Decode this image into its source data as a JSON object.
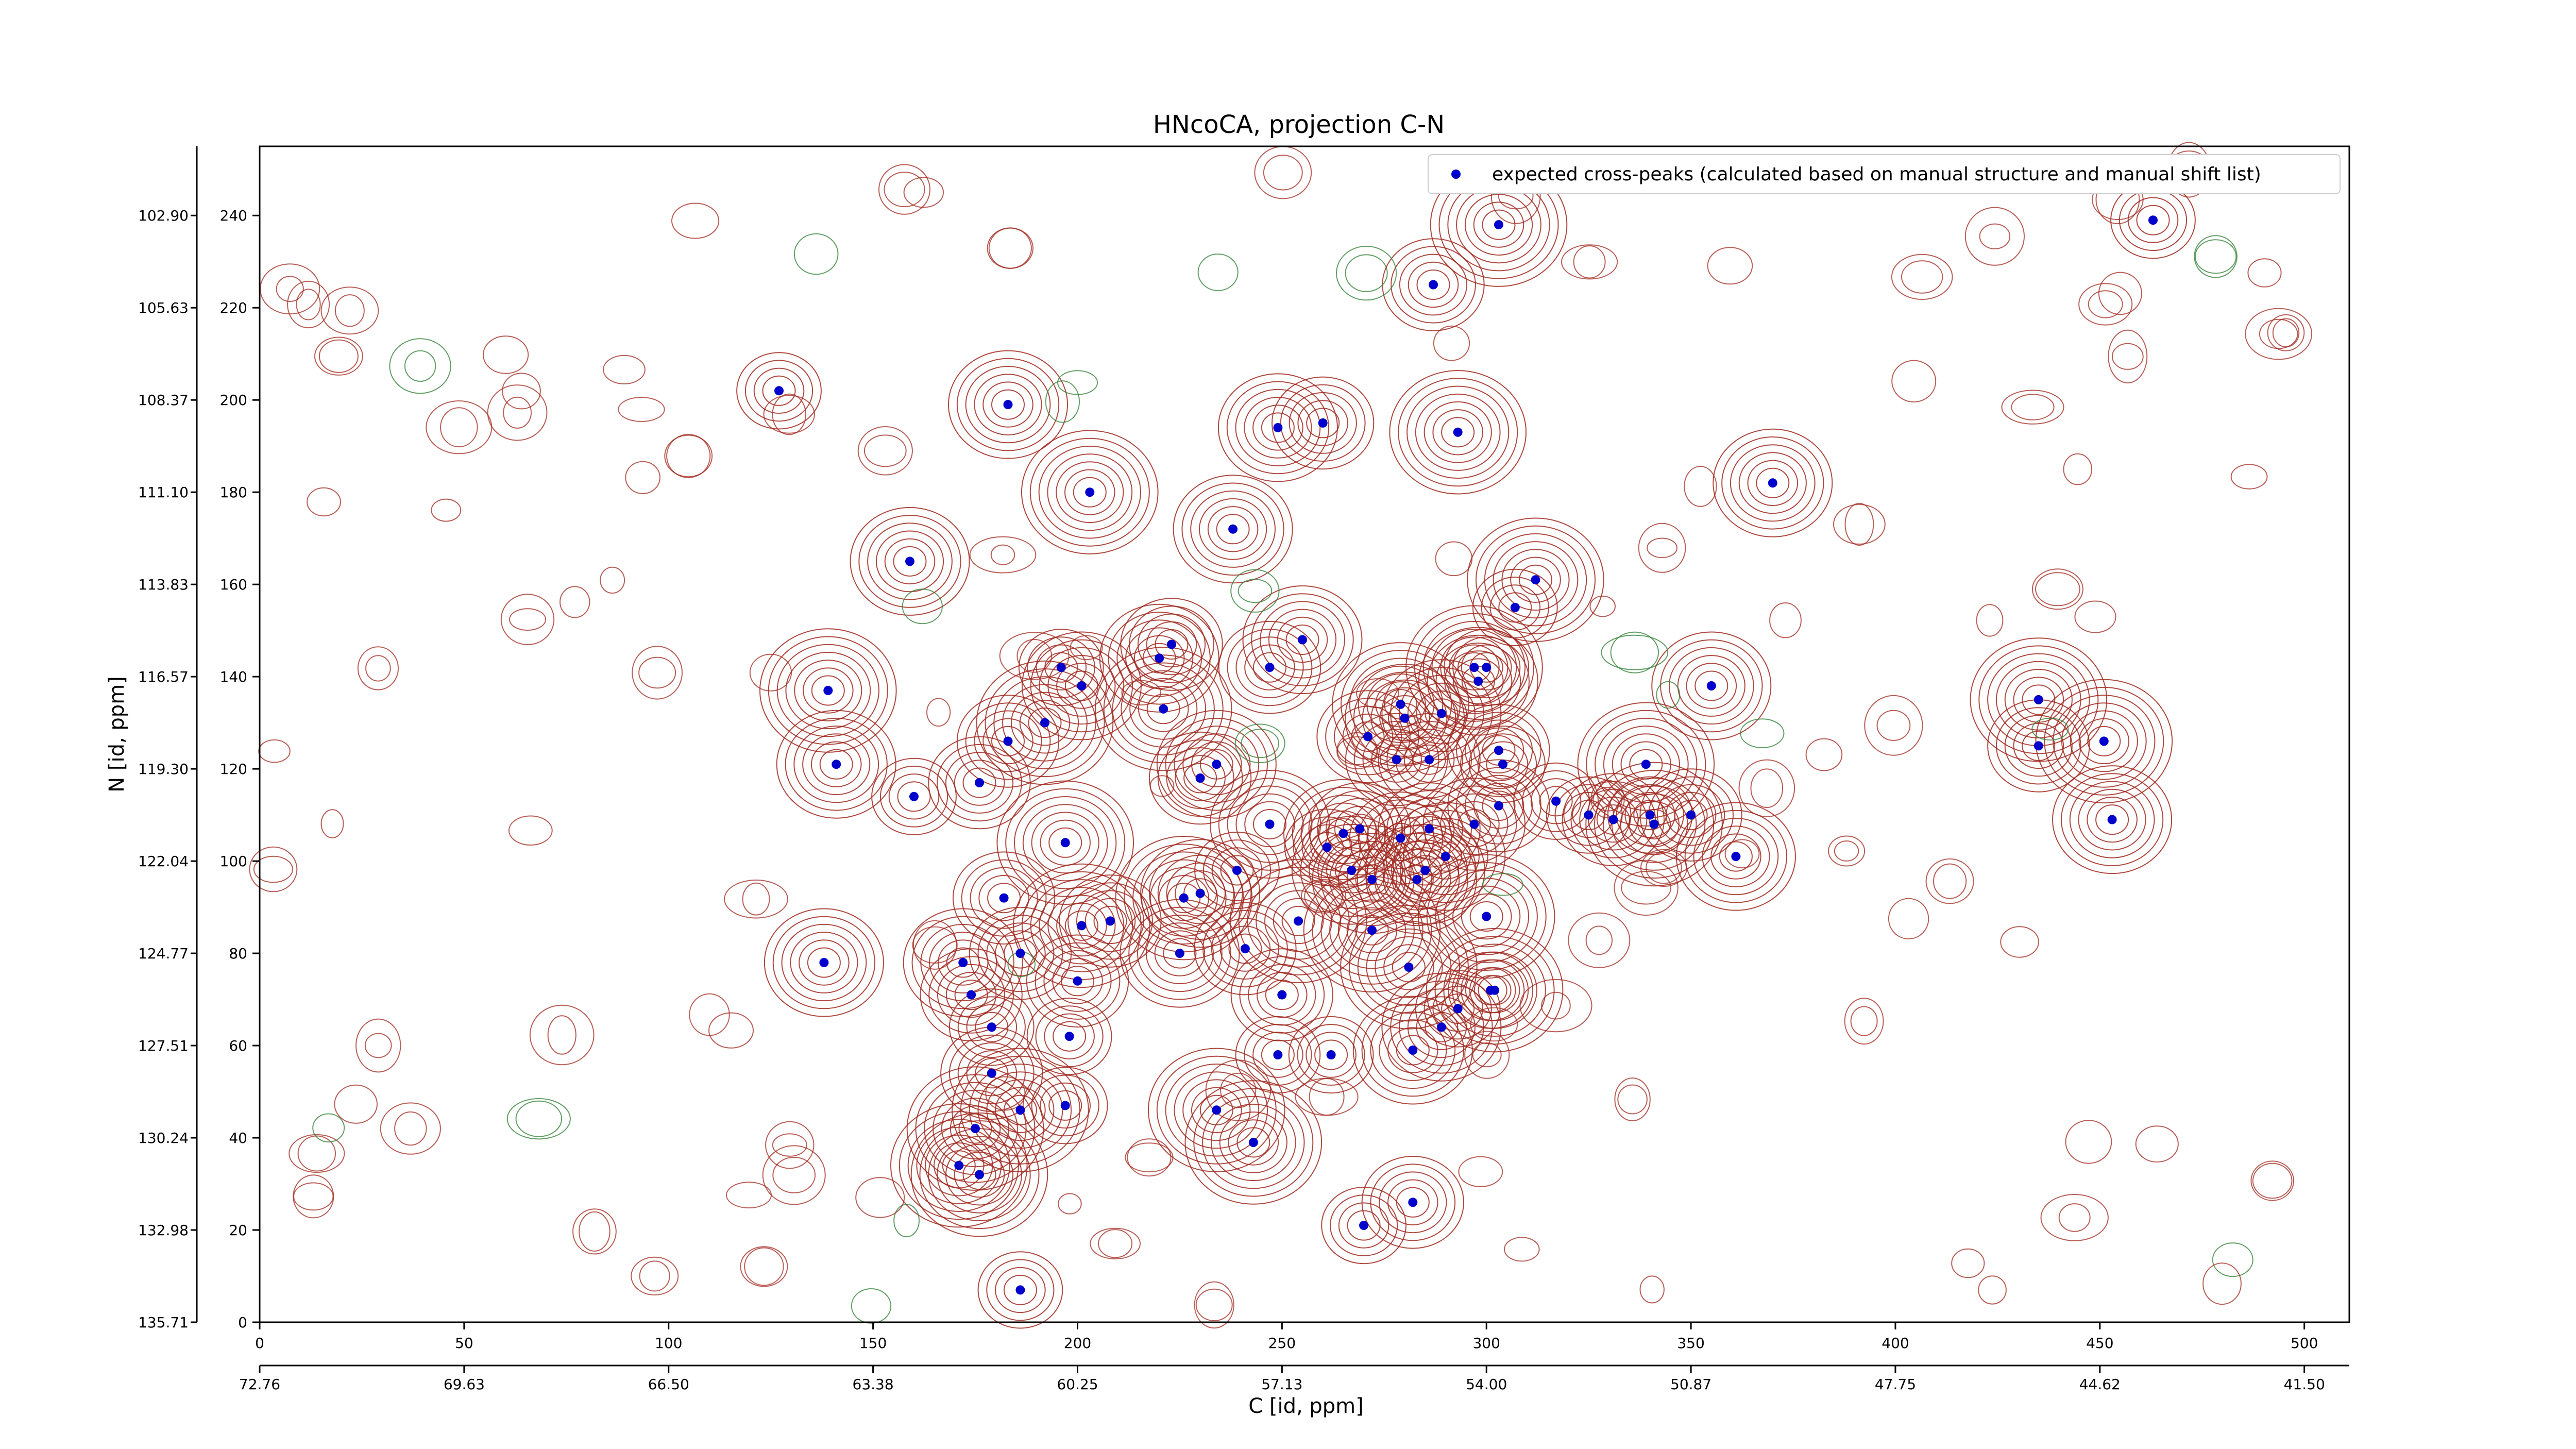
{
  "chart_data": {
    "type": "scatter",
    "title": "HNcoCA, projection C-N",
    "xlabel": "C [id, ppm]",
    "ylabel": "N [id, ppm]",
    "xlim": [
      0,
      511
    ],
    "ylim": [
      0,
      255
    ],
    "x_ticks_id": [
      "0",
      "50",
      "100",
      "150",
      "200",
      "250",
      "300",
      "350",
      "400",
      "450",
      "500"
    ],
    "x_ticks_ppm": [
      "72.76",
      "69.63",
      "66.50",
      "63.38",
      "60.25",
      "57.13",
      "54.00",
      "50.87",
      "47.75",
      "44.62",
      "41.50"
    ],
    "y_ticks_id": [
      "0",
      "20",
      "40",
      "60",
      "80",
      "100",
      "120",
      "140",
      "160",
      "180",
      "200",
      "220",
      "240"
    ],
    "y_ticks_ppm": [
      "135.71",
      "132.98",
      "130.24",
      "127.51",
      "124.77",
      "122.04",
      "119.30",
      "116.57",
      "113.83",
      "111.10",
      "108.37",
      "105.63",
      "102.90"
    ],
    "legend": {
      "position": "top-right",
      "label": "expected cross-peaks (calculated based on manual structure and manual shift list)"
    },
    "colors": {
      "peak": "#0000cc",
      "contour_pos": "#a0281e",
      "contour_neg": "#2e7d32"
    },
    "series": [
      {
        "name": "expected cross-peaks (calculated based on manual structure and manual shift list)",
        "points": [
          [
            463,
            239
          ],
          [
            303,
            238
          ],
          [
            287,
            225
          ],
          [
            127,
            202
          ],
          [
            183,
            199
          ],
          [
            249,
            194
          ],
          [
            260,
            195
          ],
          [
            293,
            193
          ],
          [
            203,
            180
          ],
          [
            370,
            182
          ],
          [
            238,
            172
          ],
          [
            159,
            165
          ],
          [
            312,
            161
          ],
          [
            307,
            155
          ],
          [
            223,
            147
          ],
          [
            255,
            148
          ],
          [
            220,
            144
          ],
          [
            196,
            142
          ],
          [
            201,
            138
          ],
          [
            247,
            142
          ],
          [
            139,
            137
          ],
          [
            297,
            142
          ],
          [
            300,
            142
          ],
          [
            298,
            139
          ],
          [
            279,
            134
          ],
          [
            280,
            131
          ],
          [
            289,
            132
          ],
          [
            355,
            138
          ],
          [
            435,
            135
          ],
          [
            221,
            133
          ],
          [
            271,
            127
          ],
          [
            183,
            126
          ],
          [
            192,
            130
          ],
          [
            303,
            124
          ],
          [
            304,
            121
          ],
          [
            278,
            122
          ],
          [
            286,
            122
          ],
          [
            435,
            125
          ],
          [
            451,
            126
          ],
          [
            141,
            121
          ],
          [
            234,
            121
          ],
          [
            339,
            121
          ],
          [
            160,
            114
          ],
          [
            269,
            107
          ],
          [
            453,
            109
          ],
          [
            247,
            108
          ],
          [
            286,
            107
          ],
          [
            261,
            103
          ],
          [
            197,
            104
          ],
          [
            317,
            113
          ],
          [
            297,
            108
          ],
          [
            331,
            109
          ],
          [
            290,
            101
          ],
          [
            341,
            108
          ],
          [
            265,
            106
          ],
          [
            325,
            110
          ],
          [
            176,
            117
          ],
          [
            230,
            118
          ],
          [
            279,
            105
          ],
          [
            303,
            112
          ],
          [
            350,
            110
          ],
          [
            361,
            101
          ],
          [
            283,
            96
          ],
          [
            239,
            98
          ],
          [
            226,
            92
          ],
          [
            182,
            92
          ],
          [
            201,
            86
          ],
          [
            272,
            96
          ],
          [
            267,
            98
          ],
          [
            285,
            98
          ],
          [
            138,
            78
          ],
          [
            230,
            93
          ],
          [
            300,
            88
          ],
          [
            208,
            87
          ],
          [
            225,
            80
          ],
          [
            241,
            81
          ],
          [
            172,
            78
          ],
          [
            186,
            80
          ],
          [
            174,
            71
          ],
          [
            200,
            74
          ],
          [
            254,
            87
          ],
          [
            272,
            85
          ],
          [
            340,
            110
          ],
          [
            281,
            77
          ],
          [
            301,
            72
          ],
          [
            250,
            71
          ],
          [
            179,
            64
          ],
          [
            198,
            62
          ],
          [
            302,
            72
          ],
          [
            262,
            58
          ],
          [
            289,
            64
          ],
          [
            249,
            58
          ],
          [
            179,
            54
          ],
          [
            282,
            59
          ],
          [
            197,
            47
          ],
          [
            186,
            46
          ],
          [
            234,
            46
          ],
          [
            243,
            39
          ],
          [
            175,
            42
          ],
          [
            171,
            34
          ],
          [
            176,
            32
          ],
          [
            282,
            26
          ],
          [
            270,
            21
          ],
          [
            186,
            7
          ],
          [
            293,
            68
          ]
        ]
      }
    ]
  }
}
